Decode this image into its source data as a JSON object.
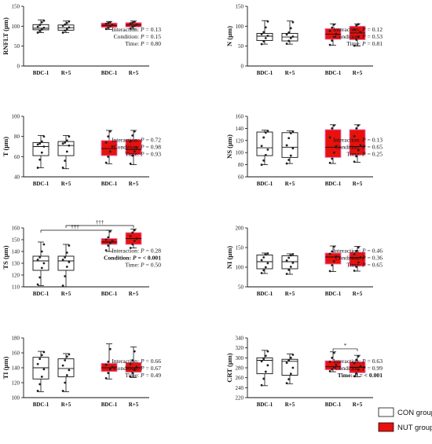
{
  "legend": {
    "con": {
      "label": "CON group",
      "color": "#ffffff"
    },
    "nut": {
      "label": "NUT group",
      "color": "#e8110c"
    }
  },
  "chart_data": [
    {
      "type": "box",
      "ylabel": "RNFLT (µm)",
      "ylim": [
        0,
        150
      ],
      "yticks": [
        0,
        50,
        100,
        150
      ],
      "categories": [
        "BDC-1",
        "R+5",
        "BDC-1",
        "R+5"
      ],
      "boxes": [
        {
          "group": "CON",
          "min": 84,
          "q1": 91,
          "median": 95,
          "q3": 104,
          "max": 116,
          "points": [
            84,
            88,
            92,
            96,
            99,
            103,
            110,
            114
          ]
        },
        {
          "group": "CON",
          "min": 84,
          "q1": 90,
          "median": 96,
          "q3": 103,
          "max": 113,
          "points": [
            84,
            89,
            93,
            97,
            101,
            104,
            108,
            112
          ]
        },
        {
          "group": "NUT",
          "min": 92,
          "q1": 97,
          "median": 102,
          "q3": 108,
          "max": 112,
          "points": [
            93,
            96,
            100,
            103,
            106,
            108,
            110
          ]
        },
        {
          "group": "NUT",
          "min": 93,
          "q1": 98,
          "median": 103,
          "q3": 109,
          "max": 113,
          "points": [
            94,
            98,
            101,
            104,
            107,
            109,
            111
          ]
        }
      ],
      "stats": [
        {
          "label": "Interaction:",
          "value": "0.13"
        },
        {
          "label": "Condition:",
          "value": "0.15"
        },
        {
          "label": "Time:",
          "value": "0.80"
        }
      ],
      "brackets": []
    },
    {
      "type": "box",
      "ylabel": "N (µm)",
      "ylim": [
        0,
        150
      ],
      "yticks": [
        0,
        50,
        100,
        150
      ],
      "categories": [
        "BDC-1",
        "R+5",
        "BDC-1",
        "R+5"
      ],
      "boxes": [
        {
          "group": "CON",
          "min": 55,
          "q1": 64,
          "median": 75,
          "q3": 82,
          "max": 114,
          "points": [
            55,
            62,
            70,
            76,
            80,
            85,
            97,
            112
          ]
        },
        {
          "group": "CON",
          "min": 55,
          "q1": 63,
          "median": 73,
          "q3": 82,
          "max": 113,
          "points": [
            56,
            63,
            70,
            74,
            79,
            84,
            95,
            110
          ]
        },
        {
          "group": "NUT",
          "min": 52,
          "q1": 67,
          "median": 80,
          "q3": 94,
          "max": 106,
          "points": [
            53,
            64,
            73,
            81,
            88,
            96,
            104
          ]
        },
        {
          "group": "NUT",
          "min": 50,
          "q1": 66,
          "median": 83,
          "q3": 100,
          "max": 106,
          "points": [
            51,
            66,
            74,
            85,
            92,
            102,
            105
          ]
        }
      ],
      "stats": [
        {
          "label": "Interaction:",
          "value": "0.12"
        },
        {
          "label": "Condition:",
          "value": "0.53"
        },
        {
          "label": "Time:",
          "value": "0.81"
        }
      ],
      "brackets": []
    },
    {
      "type": "box",
      "ylabel": "T (µm)",
      "ylim": [
        40,
        100
      ],
      "yticks": [
        40,
        60,
        80,
        100
      ],
      "categories": [
        "BDC-1",
        "R+5",
        "BDC-1",
        "R+5"
      ],
      "boxes": [
        {
          "group": "CON",
          "min": 49,
          "q1": 61,
          "median": 70,
          "q3": 74,
          "max": 81,
          "points": [
            49,
            57,
            64,
            70,
            72,
            73,
            75,
            80
          ]
        },
        {
          "group": "CON",
          "min": 48,
          "q1": 61,
          "median": 71,
          "q3": 75,
          "max": 81,
          "points": [
            49,
            56,
            65,
            71,
            73,
            74,
            76,
            80
          ]
        },
        {
          "group": "NUT",
          "min": 53,
          "q1": 61,
          "median": 68,
          "q3": 76,
          "max": 86,
          "points": [
            54,
            60,
            65,
            70,
            74,
            80,
            85
          ]
        },
        {
          "group": "NUT",
          "min": 52,
          "q1": 62,
          "median": 67,
          "q3": 77,
          "max": 86,
          "points": [
            53,
            61,
            65,
            69,
            75,
            81,
            85
          ]
        }
      ],
      "stats": [
        {
          "label": "Interaction:",
          "value": "0.72"
        },
        {
          "label": "Condition:",
          "value": "0.98"
        },
        {
          "label": "Time:",
          "value": "0.93"
        }
      ],
      "brackets": []
    },
    {
      "type": "box",
      "ylabel": "NS (µm)",
      "ylim": [
        60,
        160
      ],
      "yticks": [
        60,
        80,
        100,
        120,
        140,
        160
      ],
      "categories": [
        "BDC-1",
        "R+5",
        "BDC-1",
        "R+5"
      ],
      "boxes": [
        {
          "group": "CON",
          "min": 80,
          "q1": 95,
          "median": 108,
          "q3": 134,
          "max": 137,
          "points": [
            80,
            87,
            96,
            105,
            111,
            125,
            133,
            136
          ]
        },
        {
          "group": "CON",
          "min": 82,
          "q1": 92,
          "median": 109,
          "q3": 133,
          "max": 136,
          "points": [
            82,
            88,
            95,
            107,
            112,
            124,
            132,
            135
          ]
        },
        {
          "group": "NUT",
          "min": 82,
          "q1": 92,
          "median": 109,
          "q3": 138,
          "max": 146,
          "points": [
            83,
            90,
            100,
            110,
            125,
            140,
            145
          ]
        },
        {
          "group": "NUT",
          "min": 84,
          "q1": 96,
          "median": 110,
          "q3": 138,
          "max": 146,
          "points": [
            85,
            94,
            104,
            112,
            127,
            140,
            145
          ]
        }
      ],
      "stats": [
        {
          "label": "Interaction:",
          "value": "0.13"
        },
        {
          "label": "Condition:",
          "value": "0.65"
        },
        {
          "label": "Time:",
          "value": "0.25"
        }
      ],
      "brackets": []
    },
    {
      "type": "box",
      "ylabel": "TS (µm)",
      "ylim": [
        110,
        160
      ],
      "yticks": [
        110,
        120,
        130,
        140,
        150,
        160
      ],
      "categories": [
        "BDC-1",
        "R+5",
        "BDC-1",
        "R+5"
      ],
      "boxes": [
        {
          "group": "CON",
          "min": 111,
          "q1": 124,
          "median": 132,
          "q3": 136,
          "max": 148,
          "points": [
            112,
            118,
            126,
            130,
            133,
            135,
            140,
            146
          ]
        },
        {
          "group": "CON",
          "min": 110,
          "q1": 124,
          "median": 132,
          "q3": 136,
          "max": 146,
          "points": [
            111,
            119,
            127,
            131,
            133,
            135,
            139,
            145
          ]
        },
        {
          "group": "NUT",
          "min": 140,
          "q1": 146,
          "median": 148,
          "q3": 151,
          "max": 158,
          "points": [
            141,
            145,
            147,
            149,
            150,
            152,
            157
          ]
        },
        {
          "group": "NUT",
          "min": 143,
          "q1": 146,
          "median": 151,
          "q3": 156,
          "max": 159,
          "points": [
            143,
            146,
            149,
            151,
            153,
            156,
            158
          ]
        }
      ],
      "stats": [
        {
          "label": "Interaction:",
          "value": "0.28"
        },
        {
          "label": "Condition:",
          "value": "< 0.001",
          "bold": true
        },
        {
          "label": "Time:",
          "value": "0.50"
        }
      ],
      "brackets": [
        {
          "from": 0,
          "to": 2,
          "label": "†††",
          "y": 158
        },
        {
          "from": 1,
          "to": 3,
          "label": "†††",
          "y": 162
        }
      ]
    },
    {
      "type": "box",
      "ylabel": "NI (µm)",
      "ylim": [
        50,
        200
      ],
      "yticks": [
        50,
        100,
        150,
        200
      ],
      "categories": [
        "BDC-1",
        "R+5",
        "BDC-1",
        "R+5"
      ],
      "boxes": [
        {
          "group": "CON",
          "min": 84,
          "q1": 96,
          "median": 114,
          "q3": 131,
          "max": 136,
          "points": [
            85,
            92,
            100,
            110,
            118,
            125,
            132,
            135
          ]
        },
        {
          "group": "CON",
          "min": 82,
          "q1": 96,
          "median": 114,
          "q3": 129,
          "max": 134,
          "points": [
            83,
            93,
            101,
            111,
            117,
            124,
            130,
            133
          ]
        },
        {
          "group": "NUT",
          "min": 89,
          "q1": 108,
          "median": 126,
          "q3": 136,
          "max": 154,
          "points": [
            90,
            105,
            115,
            127,
            134,
            140,
            152
          ]
        },
        {
          "group": "NUT",
          "min": 90,
          "q1": 103,
          "median": 124,
          "q3": 138,
          "max": 153,
          "points": [
            91,
            101,
            112,
            125,
            133,
            141,
            150
          ]
        }
      ],
      "stats": [
        {
          "label": "Interaction:",
          "value": "0.46"
        },
        {
          "label": "Condition:",
          "value": "0.36"
        },
        {
          "label": "Time:",
          "value": "0.65"
        }
      ],
      "brackets": []
    },
    {
      "type": "box",
      "ylabel": "TI (µm)",
      "ylim": [
        100,
        180
      ],
      "yticks": [
        100,
        120,
        140,
        160,
        180
      ],
      "categories": [
        "BDC-1",
        "R+5",
        "BDC-1",
        "R+5"
      ],
      "boxes": [
        {
          "group": "CON",
          "min": 108,
          "q1": 125,
          "median": 140,
          "q3": 154,
          "max": 162,
          "points": [
            109,
            118,
            128,
            138,
            145,
            152,
            157,
            161
          ]
        },
        {
          "group": "CON",
          "min": 108,
          "q1": 128,
          "median": 139,
          "q3": 152,
          "max": 159,
          "points": [
            109,
            120,
            130,
            137,
            143,
            150,
            155,
            158
          ]
        },
        {
          "group": "NUT",
          "min": 125,
          "q1": 135,
          "median": 140,
          "q3": 146,
          "max": 172,
          "points": [
            126,
            133,
            138,
            141,
            144,
            148,
            165
          ]
        },
        {
          "group": "NUT",
          "min": 127,
          "q1": 134,
          "median": 140,
          "q3": 147,
          "max": 168,
          "points": [
            128,
            133,
            137,
            141,
            145,
            150,
            162
          ]
        }
      ],
      "stats": [
        {
          "label": "Interaction:",
          "value": "0.66"
        },
        {
          "label": "Condition:",
          "value": "0.67"
        },
        {
          "label": "Time:",
          "value": "0.49"
        }
      ],
      "brackets": []
    },
    {
      "type": "box",
      "ylabel": "CRT (µm)",
      "ylim": [
        220,
        340
      ],
      "yticks": [
        220,
        240,
        260,
        280,
        300,
        320,
        340
      ],
      "categories": [
        "BDC-1",
        "R+5",
        "BDC-1",
        "R+5"
      ],
      "boxes": [
        {
          "group": "CON",
          "min": 244,
          "q1": 268,
          "median": 295,
          "q3": 300,
          "max": 315,
          "points": [
            245,
            258,
            272,
            285,
            293,
            298,
            304,
            313
          ]
        },
        {
          "group": "CON",
          "min": 248,
          "q1": 265,
          "median": 293,
          "q3": 297,
          "max": 308,
          "points": [
            249,
            257,
            268,
            280,
            290,
            295,
            300,
            306
          ]
        },
        {
          "group": "NUT",
          "min": 272,
          "q1": 276,
          "median": 282,
          "q3": 294,
          "max": 312,
          "points": [
            273,
            277,
            281,
            286,
            292,
            300,
            310
          ]
        },
        {
          "group": "NUT",
          "min": 262,
          "q1": 270,
          "median": 281,
          "q3": 292,
          "max": 305,
          "points": [
            263,
            269,
            276,
            283,
            289,
            296,
            303
          ]
        }
      ],
      "stats": [
        {
          "label": "Interaction:",
          "value": "0.63"
        },
        {
          "label": "Condition:",
          "value": "0.99"
        },
        {
          "label": "Time:",
          "value": "< 0.001",
          "bold": true
        }
      ],
      "brackets": [
        {
          "from": 2,
          "to": 3,
          "label": "*",
          "y": 318
        }
      ]
    }
  ]
}
